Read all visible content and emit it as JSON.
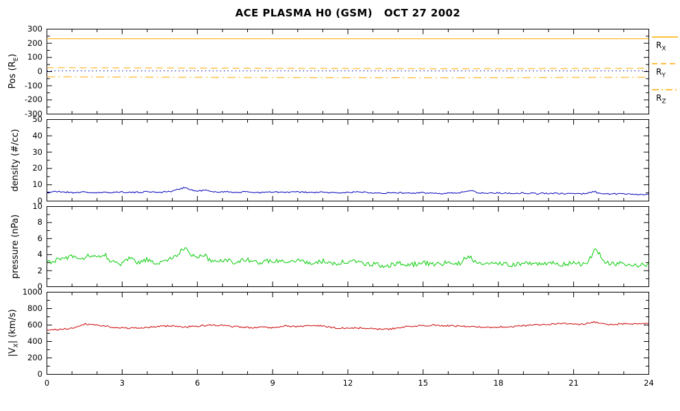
{
  "title": "ACE PLASMA H0 (GSM)   OCT 27 2002",
  "colors": {
    "position": "#FFAA00",
    "density": "#0000BB",
    "pressure": "#00CC00",
    "velocity": "#CC0000",
    "reference": "#0000BB",
    "axis": "#000000"
  },
  "x_axis": {
    "min": 0,
    "max": 24,
    "major_ticks": [
      0,
      3,
      6,
      9,
      12,
      15,
      18,
      21,
      24
    ],
    "minor_step": 1
  },
  "chart_data": [
    {
      "type": "line",
      "name": "position",
      "ylabel_pre": "Pos (R",
      "ylabel_sub": "E",
      "ylabel_post": ")",
      "xlim": [
        0,
        24
      ],
      "ylim": [
        -300,
        300
      ],
      "yticks": [
        -300,
        -200,
        -100,
        0,
        100,
        200,
        300
      ],
      "yminor_step": 50,
      "series": [
        {
          "name": "R_X",
          "style": "solid",
          "color": "#FFAA00",
          "noise": 0,
          "seed": 11,
          "anchors": [
            [
              0,
              232
            ],
            [
              24,
              232
            ]
          ]
        },
        {
          "name": "R_Y",
          "style": "dashed",
          "color": "#FFAA00",
          "noise": 0.8,
          "seed": 12,
          "anchors": [
            [
              0,
              28
            ],
            [
              8,
              24
            ],
            [
              16,
              20
            ],
            [
              24,
              23
            ]
          ]
        },
        {
          "name": "R_Z",
          "style": "dashdot",
          "color": "#FFAA00",
          "noise": 0.8,
          "seed": 13,
          "anchors": [
            [
              0,
              -36
            ],
            [
              8,
              -42
            ],
            [
              16,
              -44
            ],
            [
              24,
              -40
            ]
          ]
        },
        {
          "name": "zero-reference",
          "style": "dotted",
          "color": "#0000BB",
          "noise": 0,
          "seed": 14,
          "anchors": [
            [
              0,
              5
            ],
            [
              24,
              5
            ]
          ]
        }
      ]
    },
    {
      "type": "line",
      "name": "density",
      "ylabel_pre": "density (#/cc)",
      "ylabel_sub": "",
      "ylabel_post": "",
      "xlim": [
        0,
        24
      ],
      "ylim": [
        0,
        50
      ],
      "yticks": [
        0,
        10,
        20,
        30,
        40,
        50
      ],
      "yminor_step": 5,
      "series": [
        {
          "name": "density",
          "style": "solid",
          "color": "#0000BB",
          "noise": 0.45,
          "seed": 21,
          "anchors": [
            [
              0,
              5.5
            ],
            [
              0.5,
              5.8
            ],
            [
              1,
              5.2
            ],
            [
              1.5,
              5.5
            ],
            [
              2,
              5.0
            ],
            [
              2.5,
              5.3
            ],
            [
              3,
              5.6
            ],
            [
              3.5,
              5.2
            ],
            [
              4,
              5.8
            ],
            [
              4.5,
              5.4
            ],
            [
              5,
              6.0
            ],
            [
              5.3,
              7.5
            ],
            [
              5.5,
              8.5
            ],
            [
              5.7,
              7.0
            ],
            [
              6,
              6.0
            ],
            [
              6.3,
              6.8
            ],
            [
              6.6,
              5.5
            ],
            [
              7,
              5.8
            ],
            [
              7.5,
              5.4
            ],
            [
              8,
              5.6
            ],
            [
              8.5,
              5.2
            ],
            [
              9,
              5.5
            ],
            [
              9.5,
              5.3
            ],
            [
              10,
              5.6
            ],
            [
              10.5,
              5.2
            ],
            [
              11,
              5.4
            ],
            [
              11.5,
              5.0
            ],
            [
              12,
              5.3
            ],
            [
              12.5,
              5.6
            ],
            [
              13,
              5.2
            ],
            [
              13.5,
              4.9
            ],
            [
              14,
              5.1
            ],
            [
              14.5,
              4.8
            ],
            [
              15,
              5.0
            ],
            [
              15.5,
              4.7
            ],
            [
              16,
              4.9
            ],
            [
              16.5,
              5.1
            ],
            [
              16.9,
              6.8
            ],
            [
              17.2,
              5.0
            ],
            [
              17.5,
              4.8
            ],
            [
              18,
              5.0
            ],
            [
              18.5,
              4.7
            ],
            [
              19,
              4.9
            ],
            [
              19.5,
              4.6
            ],
            [
              20,
              4.8
            ],
            [
              20.5,
              4.5
            ],
            [
              21,
              4.7
            ],
            [
              21.5,
              4.4
            ],
            [
              21.8,
              6.0
            ],
            [
              22.1,
              4.5
            ],
            [
              22.5,
              4.3
            ],
            [
              23,
              4.5
            ],
            [
              23.5,
              4.2
            ],
            [
              24,
              4.0
            ]
          ]
        }
      ]
    },
    {
      "type": "line",
      "name": "pressure",
      "ylabel_pre": "pressure (nPa)",
      "ylabel_sub": "",
      "ylabel_post": "",
      "xlim": [
        0,
        24
      ],
      "ylim": [
        0,
        10
      ],
      "yticks": [
        0,
        2,
        4,
        6,
        8,
        10
      ],
      "yminor_step": 1,
      "series": [
        {
          "name": "pressure",
          "style": "solid",
          "color": "#00CC00",
          "noise": 0.3,
          "seed": 31,
          "anchors": [
            [
              0,
              3.0
            ],
            [
              0.5,
              3.4
            ],
            [
              1,
              3.8
            ],
            [
              1.3,
              3.2
            ],
            [
              1.6,
              4.0
            ],
            [
              2,
              3.5
            ],
            [
              2.3,
              4.1
            ],
            [
              2.6,
              3.0
            ],
            [
              3,
              2.8
            ],
            [
              3.3,
              3.6
            ],
            [
              3.6,
              2.9
            ],
            [
              4,
              3.4
            ],
            [
              4.3,
              2.8
            ],
            [
              4.6,
              3.2
            ],
            [
              5,
              3.5
            ],
            [
              5.3,
              4.3
            ],
            [
              5.5,
              5.0
            ],
            [
              5.7,
              4.2
            ],
            [
              6,
              3.6
            ],
            [
              6.3,
              3.9
            ],
            [
              6.6,
              3.1
            ],
            [
              7,
              3.4
            ],
            [
              7.5,
              3.1
            ],
            [
              8,
              3.3
            ],
            [
              8.5,
              3.0
            ],
            [
              9,
              3.3
            ],
            [
              9.5,
              3.1
            ],
            [
              10,
              3.4
            ],
            [
              10.5,
              2.9
            ],
            [
              11,
              3.2
            ],
            [
              11.5,
              2.8
            ],
            [
              12,
              3.2
            ],
            [
              12.5,
              3.0
            ],
            [
              13,
              2.8
            ],
            [
              13.5,
              2.6
            ],
            [
              14,
              2.9
            ],
            [
              14.5,
              2.7
            ],
            [
              15,
              3.0
            ],
            [
              15.5,
              2.8
            ],
            [
              16,
              3.0
            ],
            [
              16.5,
              2.9
            ],
            [
              16.8,
              4.0
            ],
            [
              17.1,
              3.0
            ],
            [
              17.5,
              2.8
            ],
            [
              18,
              3.0
            ],
            [
              18.5,
              2.7
            ],
            [
              19,
              2.9
            ],
            [
              19.5,
              2.8
            ],
            [
              20,
              3.0
            ],
            [
              20.5,
              2.8
            ],
            [
              21,
              3.0
            ],
            [
              21.5,
              2.8
            ],
            [
              21.9,
              4.8
            ],
            [
              22.2,
              3.0
            ],
            [
              22.5,
              2.8
            ],
            [
              23,
              2.9
            ],
            [
              23.5,
              2.7
            ],
            [
              24,
              2.8
            ]
          ]
        }
      ]
    },
    {
      "type": "line",
      "name": "velocity",
      "ylabel_pre": "|V",
      "ylabel_sub": "X",
      "ylabel_post": "| (km/s)",
      "xlim": [
        0,
        24
      ],
      "ylim": [
        0,
        1000
      ],
      "yticks": [
        0,
        200,
        400,
        600,
        800,
        1000
      ],
      "yminor_step": 100,
      "series": [
        {
          "name": "Vx",
          "style": "solid",
          "color": "#CC0000",
          "noise": 10,
          "seed": 41,
          "anchors": [
            [
              0,
              535
            ],
            [
              0.5,
              545
            ],
            [
              1,
              560
            ],
            [
              1.5,
              615
            ],
            [
              2,
              600
            ],
            [
              2.5,
              580
            ],
            [
              3,
              565
            ],
            [
              3.5,
              560
            ],
            [
              4,
              570
            ],
            [
              4.5,
              585
            ],
            [
              5,
              590
            ],
            [
              5.5,
              575
            ],
            [
              6,
              585
            ],
            [
              6.5,
              600
            ],
            [
              7,
              595
            ],
            [
              7.5,
              580
            ],
            [
              8,
              570
            ],
            [
              8.5,
              575
            ],
            [
              9,
              570
            ],
            [
              9.5,
              590
            ],
            [
              10,
              580
            ],
            [
              10.5,
              595
            ],
            [
              11,
              585
            ],
            [
              11.5,
              565
            ],
            [
              12,
              560
            ],
            [
              12.5,
              565
            ],
            [
              13,
              555
            ],
            [
              13.5,
              545
            ],
            [
              14,
              565
            ],
            [
              14.5,
              585
            ],
            [
              15,
              595
            ],
            [
              15.5,
              600
            ],
            [
              16,
              590
            ],
            [
              16.5,
              585
            ],
            [
              17,
              580
            ],
            [
              17.5,
              570
            ],
            [
              18,
              575
            ],
            [
              18.5,
              580
            ],
            [
              19,
              590
            ],
            [
              19.5,
              600
            ],
            [
              20,
              610
            ],
            [
              20.5,
              620
            ],
            [
              21,
              605
            ],
            [
              21.5,
              615
            ],
            [
              21.8,
              640
            ],
            [
              22.2,
              610
            ],
            [
              22.5,
              605
            ],
            [
              23,
              615
            ],
            [
              23.5,
              610
            ],
            [
              24,
              620
            ]
          ]
        }
      ]
    }
  ],
  "legend": {
    "entries": [
      {
        "label_pre": "R",
        "label_sub": "X",
        "style": "solid"
      },
      {
        "label_pre": "R",
        "label_sub": "Y",
        "style": "dashed"
      },
      {
        "label_pre": "R",
        "label_sub": "Z",
        "style": "dashdot"
      }
    ]
  }
}
